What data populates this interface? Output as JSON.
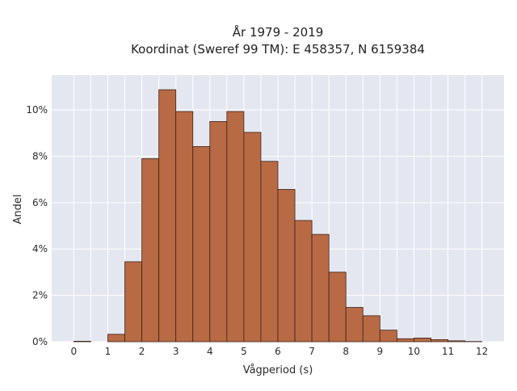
{
  "chart_data": {
    "type": "bar",
    "title": "År 1979 - 2019",
    "subtitle": "Koordinat (Sweref 99 TM): E 458357, N 6159384",
    "xlabel": "Vågperiod (s)",
    "ylabel": "Andel",
    "xlim": [
      -0.65,
      12.65
    ],
    "ylim": [
      0,
      11.5
    ],
    "x_ticks": [
      0,
      1,
      2,
      3,
      4,
      5,
      6,
      7,
      8,
      9,
      10,
      11,
      12
    ],
    "x_tick_labels": [
      "0",
      "1",
      "2",
      "3",
      "4",
      "5",
      "6",
      "7",
      "8",
      "9",
      "10",
      "11",
      "12"
    ],
    "y_ticks": [
      0,
      2,
      4,
      6,
      8,
      10
    ],
    "y_tick_labels": [
      "0%",
      "2%",
      "4%",
      "6%",
      "8%",
      "10%"
    ],
    "bin_width": 0.5,
    "bin_starts": [
      0,
      0.5,
      1,
      1.5,
      2,
      2.5,
      3,
      3.5,
      4,
      4.5,
      5,
      5.5,
      6,
      6.5,
      7,
      7.5,
      8,
      8.5,
      9,
      9.5,
      10,
      10.5,
      11,
      11.5
    ],
    "values": [
      0.02,
      0,
      0.32,
      3.45,
      7.9,
      10.87,
      9.93,
      8.42,
      9.5,
      9.93,
      9.03,
      7.78,
      6.57,
      5.23,
      4.63,
      3.0,
      1.48,
      1.12,
      0.5,
      0.13,
      0.16,
      0.09,
      0.04,
      0.01
    ],
    "grid": true,
    "legend": "none",
    "colors": {
      "bar_fill": "#b86a45",
      "bar_edge": "#3a2418",
      "plot_background": "#e5e7f0",
      "grid": "#ffffff",
      "page_background": "#ffffff"
    }
  }
}
